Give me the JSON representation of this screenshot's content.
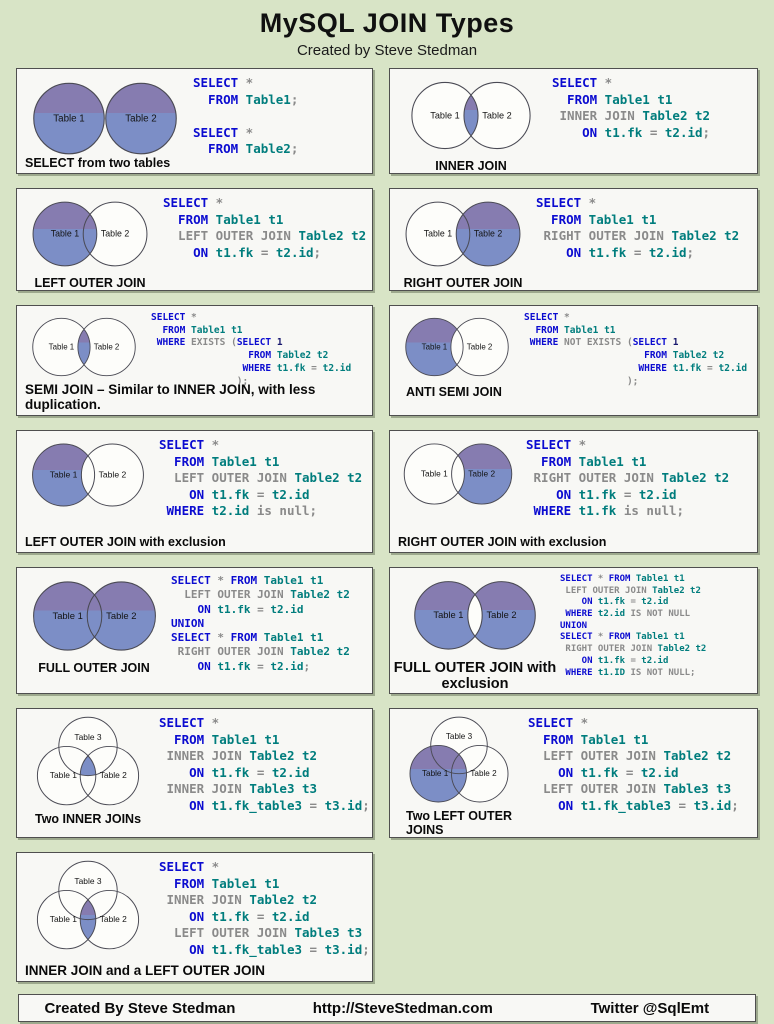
{
  "header": {
    "title": "MySQL JOIN Types",
    "subtitle": "Created by Steve Stedman"
  },
  "footer": {
    "created": "Created By Steve Stedman",
    "url": "http://SteveStedman.com",
    "twitter": "Twitter  @SqlEmt"
  },
  "colors": {
    "background": "#d8e4c6",
    "panel_bg": "#f8f8f5",
    "keyword_blue": "#0b0bd0",
    "identifier_teal": "#007d7d",
    "muted_gray": "#8a8a8a",
    "number_navy": "#18186e",
    "venn_fill_top": "#867cb0",
    "venn_fill_bottom": "#7c8ec6",
    "circle_stroke": "#4a4a54",
    "circle_white": "#fdfdfa"
  },
  "panels": [
    {
      "caption": "SELECT from two tables",
      "venn": {
        "type": "separate-both",
        "labels": [
          "Table 1",
          "Table 2"
        ]
      },
      "code": [
        [
          [
            "k",
            "SELECT"
          ],
          [
            "m",
            " *"
          ]
        ],
        [
          [
            "k",
            "  FROM"
          ],
          [
            "i",
            " Table1"
          ],
          [
            "m",
            ";"
          ]
        ],
        [
          [
            "m",
            ""
          ]
        ],
        [
          [
            "k",
            "SELECT"
          ],
          [
            "m",
            " *"
          ]
        ],
        [
          [
            "k",
            "  FROM"
          ],
          [
            "i",
            " Table2"
          ],
          [
            "m",
            ";"
          ]
        ]
      ]
    },
    {
      "caption": "INNER JOIN",
      "venn": {
        "type": "intersection",
        "labels": [
          "Table 1",
          "Table 2"
        ]
      },
      "code": [
        [
          [
            "k",
            "SELECT"
          ],
          [
            "m",
            " *"
          ]
        ],
        [
          [
            "k",
            "  FROM"
          ],
          [
            "i",
            " Table1 t1"
          ]
        ],
        [
          [
            "m",
            " INNER JOIN"
          ],
          [
            "i",
            " Table2 t2"
          ]
        ],
        [
          [
            "k",
            "    ON"
          ],
          [
            "i",
            " t1.fk"
          ],
          [
            "m",
            " ="
          ],
          [
            "i",
            " t2.id"
          ],
          [
            "m",
            ";"
          ]
        ]
      ]
    },
    {
      "caption": "LEFT OUTER JOIN",
      "venn": {
        "type": "left-full",
        "labels": [
          "Table 1",
          "Table 2"
        ]
      },
      "code": [
        [
          [
            "k",
            "SELECT"
          ],
          [
            "m",
            " *"
          ]
        ],
        [
          [
            "k",
            "  FROM"
          ],
          [
            "i",
            " Table1 t1"
          ]
        ],
        [
          [
            "m",
            "  LEFT OUTER JOIN"
          ],
          [
            "i",
            " Table2 t2"
          ]
        ],
        [
          [
            "k",
            "    ON"
          ],
          [
            "i",
            " t1.fk"
          ],
          [
            "m",
            " ="
          ],
          [
            "i",
            " t2.id"
          ],
          [
            "m",
            ";"
          ]
        ]
      ]
    },
    {
      "caption": "RIGHT OUTER JOIN",
      "venn": {
        "type": "right-full",
        "labels": [
          "Table 1",
          "Table 2"
        ]
      },
      "code": [
        [
          [
            "k",
            "SELECT"
          ],
          [
            "m",
            " *"
          ]
        ],
        [
          [
            "k",
            "  FROM"
          ],
          [
            "i",
            " Table1 t1"
          ]
        ],
        [
          [
            "m",
            " RIGHT OUTER JOIN"
          ],
          [
            "i",
            " Table2 t2"
          ]
        ],
        [
          [
            "k",
            "    ON"
          ],
          [
            "i",
            " t1.fk"
          ],
          [
            "m",
            " ="
          ],
          [
            "i",
            " t2.id"
          ],
          [
            "m",
            ";"
          ]
        ]
      ]
    },
    {
      "caption": "SEMI JOIN – Similar to INNER JOIN, with less duplication.",
      "venn": {
        "type": "intersection",
        "labels": [
          "Table 1",
          "Table 2"
        ]
      },
      "code": [
        [
          [
            "k",
            "SELECT"
          ],
          [
            "m",
            " *"
          ]
        ],
        [
          [
            "k",
            "  FROM"
          ],
          [
            "i",
            " Table1 t1"
          ]
        ],
        [
          [
            "k",
            " WHERE"
          ],
          [
            "m",
            " EXISTS ("
          ],
          [
            "k",
            "SELECT"
          ],
          [
            "n",
            " 1"
          ]
        ],
        [
          [
            "k",
            "                 FROM"
          ],
          [
            "i",
            " Table2 t2"
          ]
        ],
        [
          [
            "k",
            "                WHERE"
          ],
          [
            "i",
            " t1.fk"
          ],
          [
            "m",
            " ="
          ],
          [
            "i",
            " t2.id"
          ]
        ],
        [
          [
            "m",
            "               );"
          ]
        ]
      ]
    },
    {
      "caption": "ANTI SEMI JOIN",
      "venn": {
        "type": "left-only",
        "labels": [
          "Table 1",
          "Table 2"
        ]
      },
      "code": [
        [
          [
            "k",
            "SELECT"
          ],
          [
            "m",
            " *"
          ]
        ],
        [
          [
            "k",
            "  FROM"
          ],
          [
            "i",
            " Table1 t1"
          ]
        ],
        [
          [
            "k",
            " WHERE"
          ],
          [
            "m",
            " NOT EXISTS ("
          ],
          [
            "k",
            "SELECT"
          ],
          [
            "n",
            " 1"
          ]
        ],
        [
          [
            "k",
            "                     FROM"
          ],
          [
            "i",
            " Table2 t2"
          ]
        ],
        [
          [
            "k",
            "                    WHERE"
          ],
          [
            "i",
            " t1.fk"
          ],
          [
            "m",
            " ="
          ],
          [
            "i",
            " t2.id"
          ]
        ],
        [
          [
            "m",
            "                  );"
          ]
        ]
      ]
    },
    {
      "caption": "LEFT OUTER JOIN with exclusion",
      "venn": {
        "type": "left-only",
        "labels": [
          "Table 1",
          "Table 2"
        ]
      },
      "code": [
        [
          [
            "k",
            "SELECT"
          ],
          [
            "m",
            " *"
          ]
        ],
        [
          [
            "k",
            "  FROM"
          ],
          [
            "i",
            " Table1 t1"
          ]
        ],
        [
          [
            "m",
            "  LEFT OUTER JOIN"
          ],
          [
            "i",
            " Table2 t2"
          ]
        ],
        [
          [
            "k",
            "    ON"
          ],
          [
            "i",
            " t1.fk"
          ],
          [
            "m",
            " ="
          ],
          [
            "i",
            " t2.id"
          ]
        ],
        [
          [
            "k",
            " WHERE"
          ],
          [
            "i",
            " t2.id"
          ],
          [
            "m",
            " is null;"
          ]
        ]
      ]
    },
    {
      "caption": "RIGHT OUTER JOIN with exclusion",
      "venn": {
        "type": "right-only",
        "labels": [
          "Table 1",
          "Table 2"
        ]
      },
      "code": [
        [
          [
            "k",
            "SELECT"
          ],
          [
            "m",
            " *"
          ]
        ],
        [
          [
            "k",
            "  FROM"
          ],
          [
            "i",
            " Table1 t1"
          ]
        ],
        [
          [
            "m",
            " RIGHT OUTER JOIN"
          ],
          [
            "i",
            " Table2 t2"
          ]
        ],
        [
          [
            "k",
            "    ON"
          ],
          [
            "i",
            " t1.fk"
          ],
          [
            "m",
            " ="
          ],
          [
            "i",
            " t2.id"
          ]
        ],
        [
          [
            "k",
            " WHERE"
          ],
          [
            "i",
            " t1.fk"
          ],
          [
            "m",
            " is null;"
          ]
        ]
      ]
    },
    {
      "caption": "FULL OUTER JOIN",
      "venn": {
        "type": "both-full",
        "labels": [
          "Table 1",
          "Table 2"
        ]
      },
      "code": [
        [
          [
            "k",
            "SELECT"
          ],
          [
            "m",
            " *"
          ],
          [
            "k",
            " FROM"
          ],
          [
            "i",
            " Table1 t1"
          ]
        ],
        [
          [
            "m",
            "  LEFT OUTER JOIN"
          ],
          [
            "i",
            " Table2 t2"
          ]
        ],
        [
          [
            "k",
            "    ON"
          ],
          [
            "i",
            " t1.fk"
          ],
          [
            "m",
            " ="
          ],
          [
            "i",
            " t2.id"
          ]
        ],
        [
          [
            "k",
            "UNION"
          ]
        ],
        [
          [
            "k",
            "SELECT"
          ],
          [
            "m",
            " *"
          ],
          [
            "k",
            " FROM"
          ],
          [
            "i",
            " Table1 t1"
          ]
        ],
        [
          [
            "m",
            " RIGHT OUTER JOIN"
          ],
          [
            "i",
            " Table2 t2"
          ]
        ],
        [
          [
            "k",
            "    ON"
          ],
          [
            "i",
            " t1.fk"
          ],
          [
            "m",
            " ="
          ],
          [
            "i",
            " t2.id"
          ],
          [
            "m",
            ";"
          ]
        ]
      ]
    },
    {
      "caption": "FULL OUTER JOIN with exclusion",
      "venn": {
        "type": "both-only",
        "labels": [
          "Table 1",
          "Table 2"
        ]
      },
      "code": [
        [
          [
            "k",
            "SELECT"
          ],
          [
            "m",
            " *"
          ],
          [
            "k",
            " FROM"
          ],
          [
            "i",
            " Table1 t1"
          ]
        ],
        [
          [
            "m",
            " LEFT OUTER JOIN"
          ],
          [
            "i",
            " Table2 t2"
          ]
        ],
        [
          [
            "k",
            "    ON"
          ],
          [
            "i",
            " t1.fk"
          ],
          [
            "m",
            " ="
          ],
          [
            "i",
            " t2.id"
          ]
        ],
        [
          [
            "k",
            " WHERE"
          ],
          [
            "i",
            " t2.id"
          ],
          [
            "m",
            " IS NOT NULL"
          ]
        ],
        [
          [
            "k",
            "UNION"
          ]
        ],
        [
          [
            "k",
            "SELECT"
          ],
          [
            "m",
            " *"
          ],
          [
            "k",
            " FROM"
          ],
          [
            "i",
            " Table1 t1"
          ]
        ],
        [
          [
            "m",
            " RIGHT OUTER JOIN"
          ],
          [
            "i",
            " Table2 t2"
          ]
        ],
        [
          [
            "k",
            "    ON"
          ],
          [
            "i",
            " t1.fk"
          ],
          [
            "m",
            " ="
          ],
          [
            "i",
            " t2.id"
          ]
        ],
        [
          [
            "k",
            " WHERE"
          ],
          [
            "i",
            " t1.ID"
          ],
          [
            "m",
            " IS NOT NULL;"
          ]
        ]
      ]
    },
    {
      "caption": "Two INNER JOINs",
      "venn": {
        "type": "tri-center",
        "labels": [
          "Table 1",
          "Table 2",
          "Table 3"
        ]
      },
      "code": [
        [
          [
            "k",
            "SELECT"
          ],
          [
            "m",
            " *"
          ]
        ],
        [
          [
            "k",
            "  FROM"
          ],
          [
            "i",
            " Table1 t1"
          ]
        ],
        [
          [
            "m",
            " INNER JOIN"
          ],
          [
            "i",
            " Table2 t2"
          ]
        ],
        [
          [
            "k",
            "    ON"
          ],
          [
            "i",
            " t1.fk"
          ],
          [
            "m",
            " ="
          ],
          [
            "i",
            " t2.id"
          ]
        ],
        [
          [
            "m",
            " INNER JOIN"
          ],
          [
            "i",
            " Table3 t3"
          ]
        ],
        [
          [
            "k",
            "    ON"
          ],
          [
            "i",
            " t1.fk_table3"
          ],
          [
            "m",
            " ="
          ],
          [
            "i",
            " t3.id"
          ],
          [
            "m",
            ";"
          ]
        ]
      ]
    },
    {
      "caption": "Two LEFT OUTER JOINS",
      "venn": {
        "type": "tri-left-full",
        "labels": [
          "Table 1",
          "Table 2",
          "Table 3"
        ]
      },
      "code": [
        [
          [
            "k",
            "SELECT"
          ],
          [
            "m",
            " *"
          ]
        ],
        [
          [
            "k",
            "  FROM"
          ],
          [
            "i",
            " Table1 t1"
          ]
        ],
        [
          [
            "m",
            "  LEFT OUTER JOIN"
          ],
          [
            "i",
            " Table2 t2"
          ]
        ],
        [
          [
            "k",
            "    ON"
          ],
          [
            "i",
            " t1.fk"
          ],
          [
            "m",
            " ="
          ],
          [
            "i",
            " t2.id"
          ]
        ],
        [
          [
            "m",
            "  LEFT OUTER JOIN"
          ],
          [
            "i",
            " Table3 t3"
          ]
        ],
        [
          [
            "k",
            "    ON"
          ],
          [
            "i",
            " t1.fk_table3"
          ],
          [
            "m",
            " ="
          ],
          [
            "i",
            " t3.id"
          ],
          [
            "m",
            ";"
          ]
        ]
      ]
    },
    {
      "caption": "INNER JOIN and a LEFT OUTER JOIN",
      "venn": {
        "type": "tri-lens",
        "labels": [
          "Table 1",
          "Table 2",
          "Table 3"
        ]
      },
      "code": [
        [
          [
            "k",
            "SELECT"
          ],
          [
            "m",
            " *"
          ]
        ],
        [
          [
            "k",
            "  FROM"
          ],
          [
            "i",
            " Table1 t1"
          ]
        ],
        [
          [
            "m",
            " INNER JOIN"
          ],
          [
            "i",
            " Table2 t2"
          ]
        ],
        [
          [
            "k",
            "    ON"
          ],
          [
            "i",
            " t1.fk"
          ],
          [
            "m",
            " ="
          ],
          [
            "i",
            " t2.id"
          ]
        ],
        [
          [
            "m",
            "  LEFT OUTER JOIN"
          ],
          [
            "i",
            " Table3 t3"
          ]
        ],
        [
          [
            "k",
            "    ON"
          ],
          [
            "i",
            " t1.fk_table3"
          ],
          [
            "m",
            " ="
          ],
          [
            "i",
            " t3.id"
          ],
          [
            "m",
            ";"
          ]
        ]
      ]
    }
  ]
}
